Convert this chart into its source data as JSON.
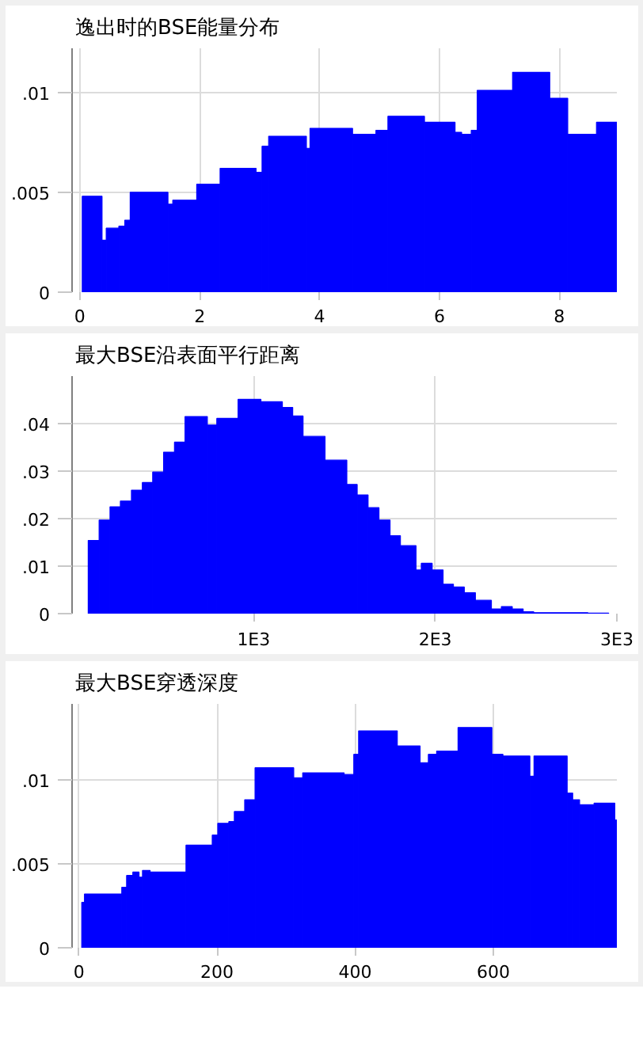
{
  "chart_data": [
    {
      "type": "histogram",
      "title": "逸出时的BSE能量分布",
      "color": "#0000ff",
      "grid": true,
      "bins": [
        0.04,
        0.37,
        0.44,
        0.65,
        0.75,
        0.84,
        1.47,
        1.55,
        1.95,
        2.34,
        2.94,
        3.04,
        3.15,
        3.78,
        3.84,
        4.55,
        4.94,
        5.14,
        5.75,
        6.26,
        6.37,
        6.53,
        6.63,
        7.22,
        7.84,
        8.14,
        8.62,
        8.96
      ],
      "values": [
        0.0048,
        0.0026,
        0.0032,
        0.0033,
        0.0036,
        0.005,
        0.0044,
        0.0046,
        0.0054,
        0.0062,
        0.006,
        0.0073,
        0.0078,
        0.0072,
        0.0082,
        0.0079,
        0.0081,
        0.0088,
        0.0085,
        0.008,
        0.0079,
        0.0081,
        0.0101,
        0.011,
        0.0097,
        0.0079,
        0.0085
      ],
      "xlim": [
        -0.13,
        8.96
      ],
      "xticks": [
        0,
        2,
        4,
        6,
        8
      ],
      "ylim": [
        0,
        0.0122
      ],
      "yticks": [
        0,
        {
          "value": 0.005,
          "label": ".005"
        },
        {
          "value": 0.01,
          "label": ".01"
        }
      ]
    },
    {
      "type": "histogram",
      "title": "最大BSE沿表面平行距离",
      "color": "#0000ff",
      "grid": true,
      "bins": [
        89,
        149,
        209,
        266,
        327,
        387,
        444,
        504,
        564,
        622,
        745,
        797,
        914,
        1040,
        1158,
        1215,
        1272,
        1393,
        1513,
        1570,
        1630,
        1690,
        1751,
        1808,
        1894,
        1923,
        1983,
        2043,
        2100,
        2160,
        2221,
        2309,
        2364,
        2424,
        2484,
        2542,
        2840,
        2955
      ],
      "values": [
        0.0154,
        0.0197,
        0.0225,
        0.0237,
        0.026,
        0.0276,
        0.0298,
        0.034,
        0.0361,
        0.0415,
        0.0397,
        0.0411,
        0.0451,
        0.0446,
        0.0434,
        0.0416,
        0.0373,
        0.0323,
        0.0272,
        0.025,
        0.0223,
        0.0197,
        0.0164,
        0.0143,
        0.0092,
        0.0106,
        0.0092,
        0.0062,
        0.0056,
        0.0044,
        0.0028,
        0.001,
        0.0015,
        0.001,
        0.0004,
        0.0002,
        0.0001
      ],
      "xlim": [
        0,
        3000
      ],
      "xticks": [
        {
          "value": 1000,
          "label": "1E3"
        },
        {
          "value": 2000,
          "label": "2E3"
        },
        {
          "value": 3000,
          "label": "3E3"
        }
      ],
      "ylim": [
        0,
        0.05
      ],
      "yticks": [
        0,
        {
          "value": 0.01,
          "label": ".01"
        },
        {
          "value": 0.02,
          "label": ".02"
        },
        {
          "value": 0.03,
          "label": ".03"
        },
        {
          "value": 0.04,
          "label": ".04"
        }
      ]
    },
    {
      "type": "histogram",
      "title": "最大BSE穿透深度",
      "color": "#0000ff",
      "grid": true,
      "bins": [
        4,
        8,
        62,
        69,
        78,
        87,
        92,
        103,
        155,
        193,
        201,
        217,
        225,
        240,
        255,
        311,
        324,
        384,
        398,
        405,
        461,
        494,
        506,
        518,
        549,
        598,
        614,
        653,
        659,
        707,
        715,
        725,
        746,
        776,
        779
      ],
      "values": [
        0.0027,
        0.0032,
        0.0036,
        0.0043,
        0.0045,
        0.0042,
        0.0046,
        0.0045,
        0.0061,
        0.0067,
        0.0074,
        0.0075,
        0.0081,
        0.0088,
        0.0107,
        0.0101,
        0.0104,
        0.0103,
        0.0115,
        0.0129,
        0.012,
        0.011,
        0.0115,
        0.0117,
        0.0131,
        0.0115,
        0.0114,
        0.0102,
        0.0114,
        0.0092,
        0.0088,
        0.0085,
        0.0086,
        0.0076
      ],
      "xlim": [
        -10,
        779
      ],
      "xticks": [
        0,
        200,
        400,
        600
      ],
      "ylim": [
        0,
        0.0145
      ],
      "yticks": [
        0,
        {
          "value": 0.005,
          "label": ".005"
        },
        {
          "value": 0.01,
          "label": ".01"
        }
      ]
    }
  ]
}
